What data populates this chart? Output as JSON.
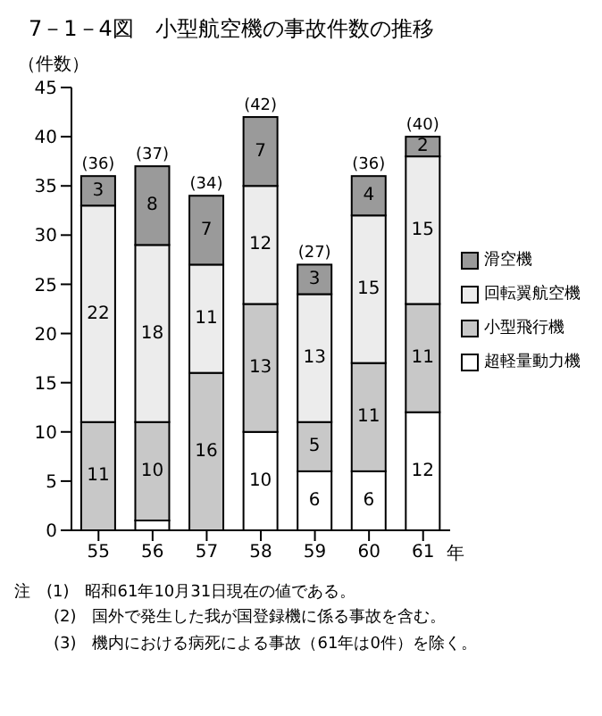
{
  "chart_data": {
    "type": "bar",
    "title": "7－1－4図　小型航空機の事故件数の推移",
    "ylabel": "（件数）",
    "xlabel": "年",
    "categories": [
      "55",
      "56",
      "57",
      "58",
      "59",
      "60",
      "61"
    ],
    "stacked": true,
    "legend": "right",
    "ylim": [
      0,
      45
    ],
    "yticks": [
      0,
      5,
      10,
      15,
      20,
      25,
      30,
      35,
      40,
      45
    ],
    "series": [
      {
        "name": "超軽量動力機",
        "color": "#ffffff",
        "values": [
          0,
          1,
          0,
          10,
          6,
          6,
          12
        ],
        "value_labels": [
          null,
          null,
          null,
          "10",
          "6",
          "6",
          "12"
        ]
      },
      {
        "name": "小型飛行機",
        "color": "#c8c8c8",
        "values": [
          11,
          10,
          16,
          13,
          5,
          11,
          11
        ],
        "value_labels": [
          "11",
          "10",
          "16",
          "13",
          "5",
          "11",
          "11"
        ]
      },
      {
        "name": "回転翼航空機",
        "color": "#ececec",
        "values": [
          22,
          18,
          11,
          12,
          13,
          15,
          15
        ],
        "value_labels": [
          "22",
          "18",
          "11",
          "12",
          "13",
          "15",
          "15"
        ]
      },
      {
        "name": "滑空機",
        "color": "#9a9a9a",
        "values": [
          3,
          8,
          7,
          7,
          3,
          4,
          2
        ],
        "value_labels": [
          "3",
          "8",
          "7",
          "7",
          "3",
          "4",
          "2"
        ]
      }
    ],
    "totals": [
      "(36)",
      "(37)",
      "(34)",
      "(42)",
      "(27)",
      "(36)",
      "(40)"
    ],
    "annotations": [
      "注　(1)　昭和61年10月31日現在の値である。",
      "(2)　国外で発生した我が国登録機に係る事故を含む。",
      "(3)　機内における病死による事故（61年は0件）を除く。"
    ]
  }
}
